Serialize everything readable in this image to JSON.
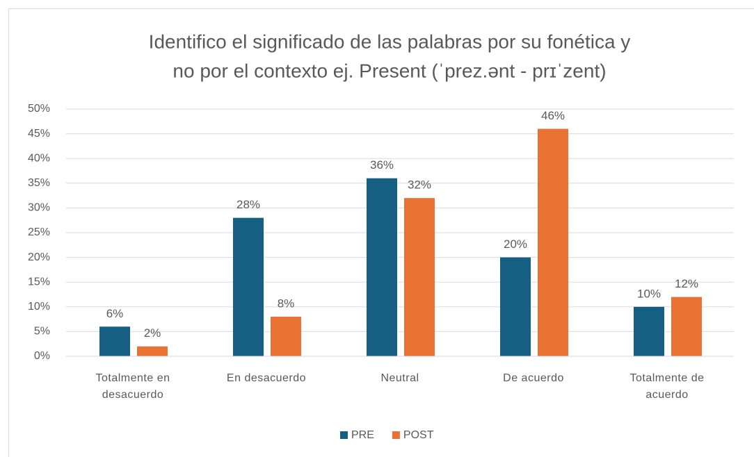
{
  "chart_data": {
    "type": "bar",
    "title": [
      "Identifico el significado de las palabras por su fonética y",
      "no por el contexto ej. Present  (ˈprez.ənt -  prɪˈzent)"
    ],
    "categories": [
      "Totalmente en desacuerdo",
      "En desacuerdo",
      "Neutral",
      "De acuerdo",
      "Totalmente de acuerdo"
    ],
    "series": [
      {
        "name": "PRE",
        "color": "#156082",
        "values": [
          6,
          28,
          36,
          20,
          10
        ],
        "value_labels": [
          "6%",
          "28%",
          "36%",
          "20%",
          "10%"
        ]
      },
      {
        "name": "POST",
        "color": "#e97132",
        "values": [
          2,
          8,
          32,
          46,
          12
        ],
        "value_labels": [
          "2%",
          "8%",
          "32%",
          "46%",
          "12%"
        ]
      }
    ],
    "ylim": [
      0,
      50
    ],
    "yticks": [
      {
        "value": 0,
        "label": "0%"
      },
      {
        "value": 5,
        "label": "5%"
      },
      {
        "value": 10,
        "label": "10%"
      },
      {
        "value": 15,
        "label": "15%"
      },
      {
        "value": 20,
        "label": "20%"
      },
      {
        "value": 25,
        "label": "25%"
      },
      {
        "value": 30,
        "label": "30%"
      },
      {
        "value": 35,
        "label": "35%"
      },
      {
        "value": 40,
        "label": "40%"
      },
      {
        "value": 45,
        "label": "45%"
      },
      {
        "value": 50,
        "label": "50%"
      }
    ],
    "grid": true,
    "legend": "bottom"
  }
}
